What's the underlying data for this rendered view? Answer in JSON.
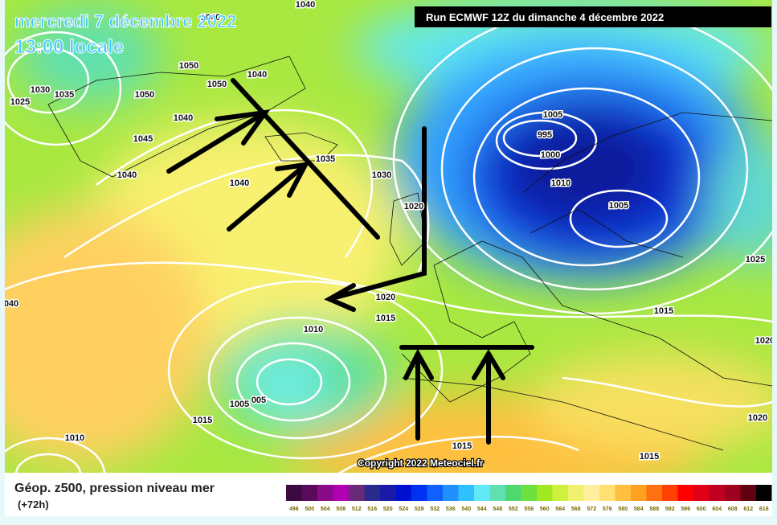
{
  "header": {
    "date": "mercredi 7 décembre 2022",
    "time": "13:00 locale",
    "run": "Run ECMWF 12Z du dimanche 4 décembre 2022"
  },
  "map": {
    "copyright": "Copyright 2022 Meteociel.fr",
    "isobar_labels": [
      "1040",
      "1040",
      "1050",
      "1050",
      "1040",
      "1030",
      "1035",
      "1025",
      "1050",
      "1040",
      "1045",
      "1040",
      "1040",
      "1035",
      "1030",
      "1020",
      "1005",
      "995",
      "1000",
      "1010",
      "1005",
      "1025",
      "1020",
      "1015",
      "1010",
      "1015",
      "1020",
      "1005",
      "005",
      "1015",
      "1010",
      "1015",
      "1020",
      "1015",
      "040"
    ]
  },
  "footer": {
    "title": "Géop. z500, pression niveau mer",
    "subtitle": "(+72h)",
    "scale": {
      "labels": [
        496,
        500,
        504,
        508,
        512,
        516,
        520,
        524,
        528,
        532,
        536,
        540,
        544,
        548,
        552,
        556,
        560,
        564,
        568,
        572,
        576,
        580,
        584,
        588,
        592,
        596,
        600,
        604,
        608,
        612,
        616
      ],
      "colors": [
        "#3a0a40",
        "#5a0a5a",
        "#8a0a8a",
        "#b000b0",
        "#6a2a7a",
        "#2a2a8a",
        "#1a1aa8",
        "#0010d0",
        "#0030f0",
        "#1060ff",
        "#2090ff",
        "#30c0ff",
        "#60e8f8",
        "#60e0b0",
        "#50d870",
        "#70e040",
        "#a0e820",
        "#d0f040",
        "#f0f070",
        "#fff0a0",
        "#ffe070",
        "#ffc040",
        "#ffa020",
        "#ff7010",
        "#ff4000",
        "#ff0000",
        "#e00018",
        "#c00020",
        "#a00020",
        "#600010",
        "#000000"
      ]
    }
  }
}
